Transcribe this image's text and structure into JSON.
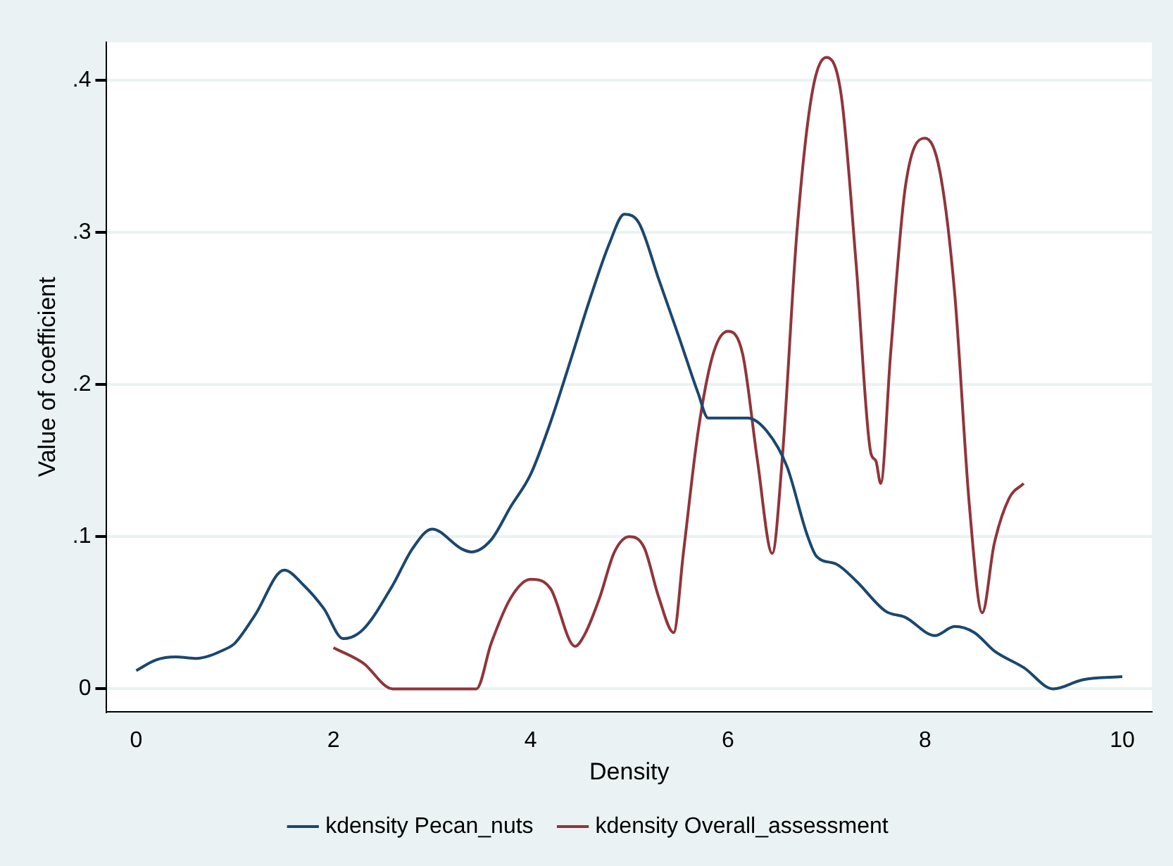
{
  "chart_data": {
    "type": "line",
    "xlabel": "Density",
    "ylabel": "Value of coefficient",
    "xlim": [
      -0.3,
      10.3
    ],
    "xticks": [
      0,
      2,
      4,
      6,
      8,
      10
    ],
    "ylim": [
      -0.015,
      0.425
    ],
    "yticks": [
      {
        "value": 0,
        "label": "0"
      },
      {
        "value": 0.1,
        "label": ".1"
      },
      {
        "value": 0.2,
        "label": ".2"
      },
      {
        "value": 0.3,
        "label": ".3"
      },
      {
        "value": 0.4,
        "label": ".4"
      }
    ],
    "grid": "y",
    "legend": "bottom",
    "marker": "none",
    "line_style": "solid",
    "series": [
      {
        "name": "kdensity Pecan_nuts",
        "color": "#1a476f",
        "x": [
          0,
          0.2,
          0.4,
          0.6,
          0.9,
          1.0,
          1.2,
          1.5,
          1.7,
          1.9,
          2.1,
          2.3,
          2.6,
          2.8,
          3.0,
          3.3,
          3.4,
          3.6,
          3.8,
          4.0,
          4.2,
          4.4,
          4.6,
          4.8,
          4.95,
          5.1,
          5.3,
          5.5,
          5.7,
          5.8,
          6.0,
          6.2,
          6.4,
          6.6,
          6.8,
          6.9,
          7.1,
          7.3,
          7.6,
          7.8,
          8.1,
          8.3,
          8.5,
          8.7,
          9.0,
          9.3,
          9.6,
          10
        ],
        "values": [
          0.012,
          0.019,
          0.021,
          0.02,
          0.026,
          0.03,
          0.048,
          0.078,
          0.068,
          0.053,
          0.033,
          0.039,
          0.068,
          0.092,
          0.105,
          0.092,
          0.09,
          0.098,
          0.12,
          0.141,
          0.175,
          0.215,
          0.256,
          0.293,
          0.312,
          0.306,
          0.269,
          0.232,
          0.194,
          0.178,
          0.178,
          0.178,
          0.169,
          0.146,
          0.102,
          0.087,
          0.082,
          0.071,
          0.051,
          0.047,
          0.035,
          0.041,
          0.037,
          0.025,
          0.014,
          0,
          0.006,
          0.008
        ]
      },
      {
        "name": "kdensity Overall_assessment",
        "color": "#90353b",
        "x": [
          2.0,
          2.3,
          2.6,
          3.45,
          3.6,
          3.8,
          4.0,
          4.2,
          4.45,
          4.55,
          4.7,
          4.85,
          5.0,
          5.15,
          5.3,
          5.45,
          5.55,
          5.7,
          5.85,
          6.0,
          6.15,
          6.3,
          6.45,
          6.55,
          6.7,
          6.85,
          7.0,
          7.15,
          7.3,
          7.45,
          7.5,
          7.55,
          7.65,
          7.8,
          8.0,
          8.15,
          8.3,
          8.45,
          8.58,
          8.7,
          8.85,
          9.0
        ],
        "values": [
          0.027,
          0.017,
          0,
          0,
          0.03,
          0.06,
          0.072,
          0.066,
          0.028,
          0.036,
          0.06,
          0.09,
          0.1,
          0.093,
          0.06,
          0.037,
          0.09,
          0.17,
          0.22,
          0.235,
          0.22,
          0.15,
          0.089,
          0.15,
          0.3,
          0.39,
          0.415,
          0.39,
          0.28,
          0.155,
          0.15,
          0.135,
          0.22,
          0.33,
          0.362,
          0.34,
          0.26,
          0.12,
          0.05,
          0.095,
          0.125,
          0.135
        ]
      }
    ]
  }
}
